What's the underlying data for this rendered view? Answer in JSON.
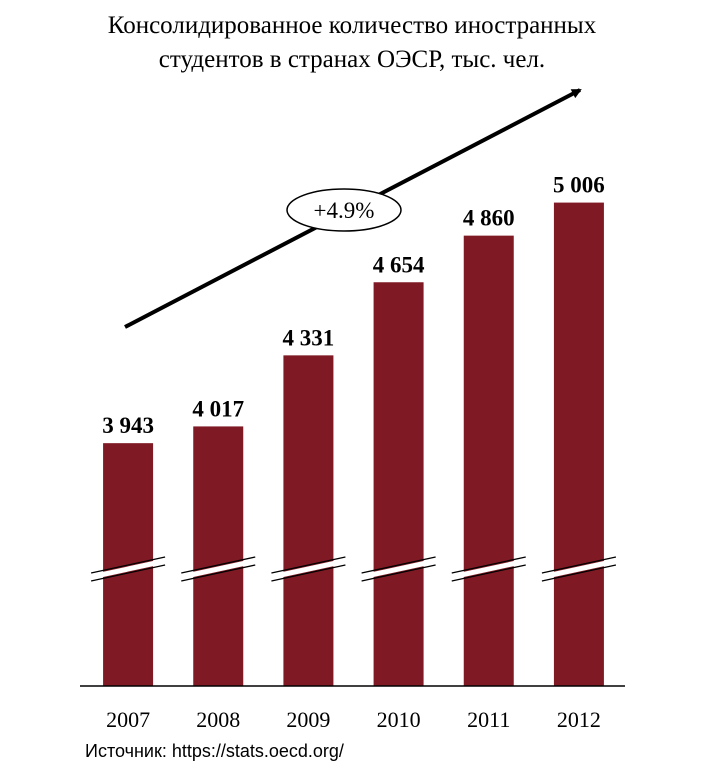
{
  "chart_data": {
    "type": "bar",
    "title": "Консолидированное количество иностранных",
    "subtitle": "студентов в странах ОЭСР, тыс. чел.",
    "categories": [
      "2007",
      "2008",
      "2009",
      "2010",
      "2011",
      "2012"
    ],
    "values": [
      3943,
      4017,
      4331,
      4654,
      4860,
      5006
    ],
    "value_labels": [
      "3 943",
      "4 017",
      "4 331",
      "4 654",
      "4 860",
      "5 006"
    ],
    "color": "#7f1a24",
    "ylim": [
      2870,
      5150
    ],
    "annotation": "+4.9%",
    "source": "Источник: https://stats.oecd.org/"
  }
}
